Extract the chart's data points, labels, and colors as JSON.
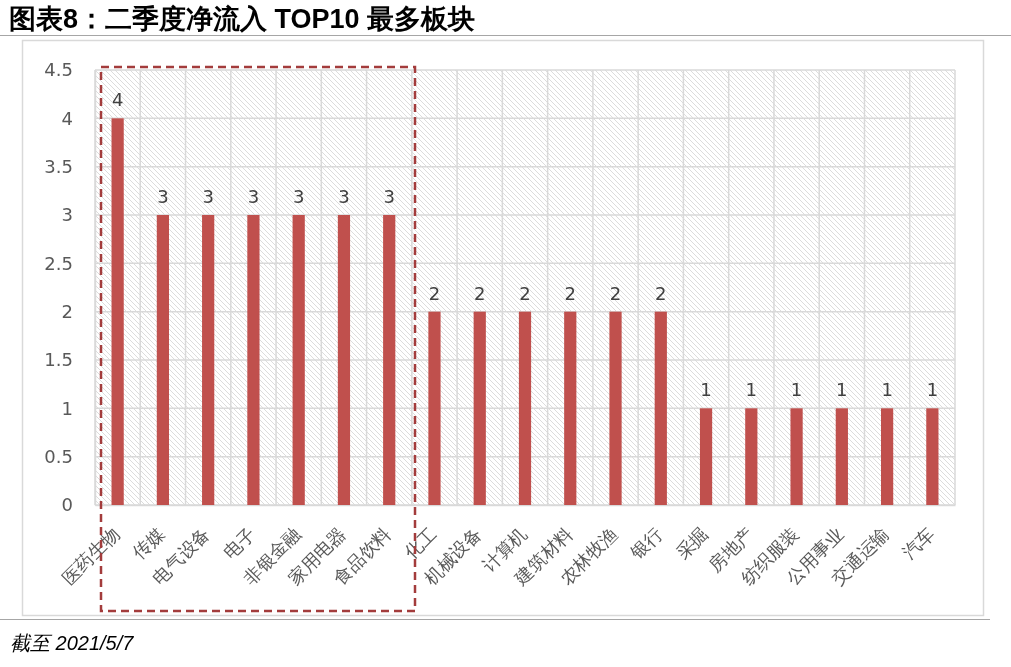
{
  "chart_data": {
    "type": "bar",
    "title": "图表8：二季度净流入 TOP10 最多板块",
    "categories": [
      "医药生物",
      "传媒",
      "电气设备",
      "电子",
      "非银金融",
      "家用电器",
      "食品饮料",
      "化工",
      "机械设备",
      "计算机",
      "建筑材料",
      "农林牧渔",
      "银行",
      "采掘",
      "房地产",
      "纺织服装",
      "公用事业",
      "交通运输",
      "汽车"
    ],
    "values": [
      4,
      3,
      3,
      3,
      3,
      3,
      3,
      2,
      2,
      2,
      2,
      2,
      2,
      1,
      1,
      1,
      1,
      1,
      1
    ],
    "color": "#c0504d",
    "ylim": [
      0,
      4.5
    ],
    "yticks": [
      0,
      0.5,
      1,
      1.5,
      2,
      2.5,
      3,
      3.5,
      4,
      4.5
    ],
    "grid": true,
    "data_labels": true,
    "annotations": [
      "截至 2021/5/7"
    ]
  }
}
